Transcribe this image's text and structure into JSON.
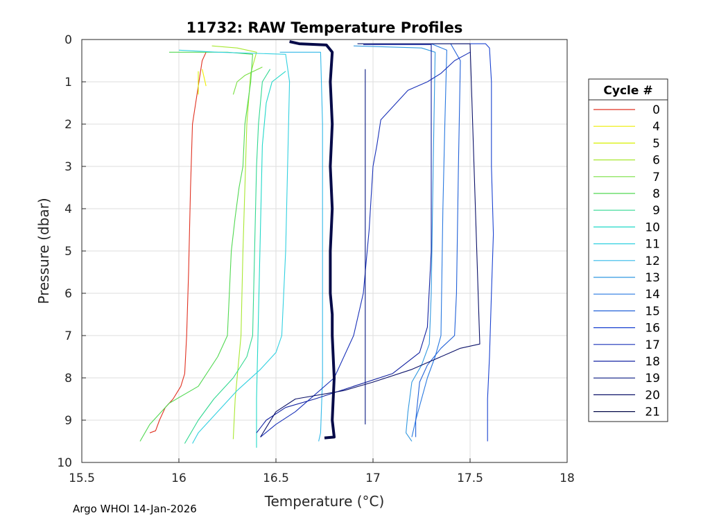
{
  "chart_data": {
    "type": "line",
    "title": "11732: RAW Temperature Profiles",
    "xlabel": "Temperature (°C)",
    "ylabel": "Pressure (dbar)",
    "xlim": [
      15.5,
      18
    ],
    "ylim": [
      0,
      10
    ],
    "y_reversed": true,
    "grid": true,
    "xticks": [
      "15.5",
      "16",
      "16.5",
      "17",
      "17.5",
      "18"
    ],
    "yticks": [
      "0",
      "1",
      "2",
      "3",
      "4",
      "5",
      "6",
      "7",
      "8",
      "9",
      "10"
    ],
    "legend": {
      "title": "Cycle #",
      "placement": "right"
    },
    "series": [
      {
        "name": "0",
        "color": "#e03020",
        "points": [
          [
            16.14,
            0.3
          ],
          [
            16.12,
            0.5
          ],
          [
            16.1,
            1.1
          ],
          [
            16.08,
            1.7
          ],
          [
            16.07,
            2.0
          ],
          [
            16.06,
            3.5
          ],
          [
            16.05,
            5.5
          ],
          [
            16.04,
            7.0
          ],
          [
            16.03,
            7.9
          ],
          [
            16.01,
            8.2
          ],
          [
            15.97,
            8.5
          ],
          [
            15.93,
            8.7
          ],
          [
            15.9,
            9.0
          ],
          [
            15.88,
            9.25
          ],
          [
            15.85,
            9.3
          ]
        ]
      },
      {
        "name": "4",
        "color": "#eeee00",
        "points": [
          [
            16.12,
            0.7
          ],
          [
            16.14,
            1.1
          ]
        ]
      },
      {
        "name": "5",
        "color": "#d8f000",
        "points": [
          [
            16.1,
            0.75
          ],
          [
            16.1,
            1.3
          ]
        ]
      },
      {
        "name": "6",
        "color": "#a8e830",
        "points": [
          [
            16.17,
            0.15
          ],
          [
            16.3,
            0.2
          ],
          [
            16.4,
            0.3
          ],
          [
            16.37,
            0.8
          ],
          [
            16.35,
            2.0
          ],
          [
            16.34,
            3.5
          ],
          [
            16.33,
            5.0
          ],
          [
            16.32,
            7.0
          ],
          [
            16.31,
            7.5
          ],
          [
            16.29,
            8.5
          ],
          [
            16.28,
            9.45
          ]
        ]
      },
      {
        "name": "7",
        "color": "#78e040",
        "points": [
          [
            16.43,
            0.65
          ],
          [
            16.34,
            0.85
          ],
          [
            16.3,
            1.0
          ],
          [
            16.28,
            1.3
          ]
        ]
      },
      {
        "name": "8",
        "color": "#50d850",
        "points": [
          [
            15.95,
            0.3
          ],
          [
            16.25,
            0.3
          ],
          [
            16.38,
            0.35
          ],
          [
            16.37,
            1.0
          ],
          [
            16.34,
            2.0
          ],
          [
            16.33,
            3.0
          ],
          [
            16.31,
            3.5
          ],
          [
            16.29,
            4.2
          ],
          [
            16.27,
            5.0
          ],
          [
            16.25,
            7.0
          ],
          [
            16.2,
            7.5
          ],
          [
            16.1,
            8.2
          ],
          [
            15.95,
            8.6
          ],
          [
            15.85,
            9.1
          ],
          [
            15.8,
            9.5
          ]
        ]
      },
      {
        "name": "9",
        "color": "#30d890",
        "points": [
          [
            16.47,
            0.7
          ],
          [
            16.43,
            1.0
          ],
          [
            16.41,
            2.0
          ],
          [
            16.4,
            3.0
          ],
          [
            16.39,
            5.0
          ],
          [
            16.38,
            7.0
          ],
          [
            16.35,
            7.5
          ],
          [
            16.28,
            8.0
          ],
          [
            16.18,
            8.5
          ],
          [
            16.1,
            9.0
          ],
          [
            16.03,
            9.55
          ]
        ]
      },
      {
        "name": "10",
        "color": "#20d8c8",
        "points": [
          [
            16.55,
            0.75
          ],
          [
            16.48,
            1.0
          ],
          [
            16.45,
            1.5
          ],
          [
            16.43,
            2.5
          ],
          [
            16.42,
            4.5
          ],
          [
            16.41,
            6.5
          ],
          [
            16.4,
            8.5
          ],
          [
            16.4,
            9.65
          ]
        ]
      },
      {
        "name": "11",
        "color": "#30d0e0",
        "points": [
          [
            16.0,
            0.25
          ],
          [
            16.2,
            0.3
          ],
          [
            16.55,
            0.35
          ],
          [
            16.57,
            1.0
          ],
          [
            16.56,
            3.0
          ],
          [
            16.55,
            5.0
          ],
          [
            16.53,
            7.0
          ],
          [
            16.5,
            7.4
          ],
          [
            16.42,
            7.8
          ],
          [
            16.3,
            8.3
          ],
          [
            16.2,
            8.8
          ],
          [
            16.1,
            9.3
          ],
          [
            16.07,
            9.55
          ]
        ]
      },
      {
        "name": "12",
        "color": "#30b8e8",
        "points": [
          [
            16.52,
            0.3
          ],
          [
            16.73,
            0.3
          ],
          [
            16.74,
            2.0
          ],
          [
            16.74,
            5.0
          ],
          [
            16.74,
            8.0
          ],
          [
            16.73,
            9.3
          ],
          [
            16.72,
            9.5
          ]
        ]
      },
      {
        "name": "13",
        "color": "#3098e0",
        "points": [
          [
            16.9,
            0.15
          ],
          [
            17.25,
            0.2
          ],
          [
            17.32,
            0.3
          ],
          [
            17.31,
            3.0
          ],
          [
            17.3,
            6.0
          ],
          [
            17.29,
            7.2
          ],
          [
            17.25,
            7.7
          ],
          [
            17.2,
            8.1
          ],
          [
            17.18,
            8.8
          ],
          [
            17.17,
            9.3
          ],
          [
            17.2,
            9.5
          ]
        ]
      },
      {
        "name": "14",
        "color": "#2878e0",
        "points": [
          [
            17.3,
            0.1
          ],
          [
            17.38,
            0.25
          ],
          [
            17.37,
            2.0
          ],
          [
            17.36,
            4.0
          ],
          [
            17.35,
            7.0
          ],
          [
            17.32,
            7.5
          ],
          [
            17.28,
            8.0
          ],
          [
            17.25,
            8.5
          ],
          [
            17.22,
            9.0
          ],
          [
            17.2,
            9.4
          ]
        ]
      },
      {
        "name": "15",
        "color": "#2060d8",
        "points": [
          [
            17.4,
            0.1
          ],
          [
            17.45,
            0.5
          ],
          [
            17.44,
            3.0
          ],
          [
            17.43,
            6.0
          ],
          [
            17.42,
            7.0
          ],
          [
            17.35,
            7.3
          ],
          [
            17.28,
            7.7
          ],
          [
            17.24,
            8.1
          ],
          [
            17.22,
            9.0
          ],
          [
            17.22,
            9.4
          ]
        ]
      },
      {
        "name": "16",
        "color": "#1840d0",
        "points": [
          [
            17.0,
            0.1
          ],
          [
            17.58,
            0.1
          ],
          [
            17.6,
            0.2
          ],
          [
            17.61,
            1.0
          ],
          [
            17.61,
            3.0
          ],
          [
            17.62,
            4.6
          ],
          [
            17.61,
            6.0
          ],
          [
            17.6,
            7.5
          ],
          [
            17.59,
            8.5
          ],
          [
            17.59,
            9.5
          ]
        ]
      },
      {
        "name": "17",
        "color": "#1830b8",
        "points": [
          [
            17.5,
            0.3
          ],
          [
            17.42,
            0.5
          ],
          [
            17.35,
            0.8
          ],
          [
            17.28,
            1.0
          ],
          [
            17.18,
            1.2
          ],
          [
            17.12,
            1.5
          ],
          [
            17.04,
            1.9
          ],
          [
            17.02,
            2.5
          ],
          [
            17.0,
            3.0
          ],
          [
            16.98,
            4.5
          ],
          [
            16.95,
            6.0
          ],
          [
            16.9,
            7.0
          ],
          [
            16.8,
            8.0
          ],
          [
            16.7,
            8.4
          ],
          [
            16.6,
            8.8
          ],
          [
            16.5,
            9.1
          ],
          [
            16.42,
            9.4
          ]
        ]
      },
      {
        "name": "18",
        "color": "#1020a0",
        "points": [
          [
            16.95,
            0.12
          ],
          [
            17.3,
            0.12
          ],
          [
            17.3,
            1.0
          ],
          [
            17.3,
            5.0
          ],
          [
            17.28,
            6.8
          ],
          [
            17.24,
            7.4
          ],
          [
            17.1,
            7.9
          ],
          [
            16.9,
            8.2
          ],
          [
            16.7,
            8.5
          ],
          [
            16.55,
            8.7
          ],
          [
            16.45,
            9.0
          ],
          [
            16.4,
            9.3
          ]
        ]
      },
      {
        "name": "19",
        "color": "#081880",
        "points": [
          [
            16.96,
            0.7
          ],
          [
            16.96,
            3.0
          ],
          [
            16.96,
            6.0
          ],
          [
            16.96,
            9.1
          ]
        ]
      },
      {
        "name": "20",
        "color": "#0a1068",
        "points": [
          [
            16.92,
            0.1
          ],
          [
            17.5,
            0.1
          ],
          [
            17.55,
            7.2
          ],
          [
            17.45,
            7.3
          ],
          [
            17.2,
            7.8
          ],
          [
            17.0,
            8.1
          ],
          [
            16.85,
            8.3
          ],
          [
            16.6,
            8.5
          ],
          [
            16.5,
            8.8
          ],
          [
            16.42,
            9.4
          ]
        ]
      },
      {
        "name": "21",
        "color": "#050a48",
        "bold": true,
        "points": [
          [
            16.57,
            0.05
          ],
          [
            16.62,
            0.1
          ],
          [
            16.76,
            0.13
          ],
          [
            16.79,
            0.3
          ],
          [
            16.78,
            1.0
          ],
          [
            16.79,
            2.0
          ],
          [
            16.78,
            3.0
          ],
          [
            16.79,
            4.0
          ],
          [
            16.78,
            5.0
          ],
          [
            16.78,
            6.0
          ],
          [
            16.79,
            6.5
          ],
          [
            16.79,
            7.0
          ],
          [
            16.8,
            8.0
          ],
          [
            16.79,
            9.0
          ],
          [
            16.8,
            9.4
          ],
          [
            16.75,
            9.42
          ]
        ]
      }
    ]
  },
  "footer": "Argo WHOI 14-Jan-2026"
}
